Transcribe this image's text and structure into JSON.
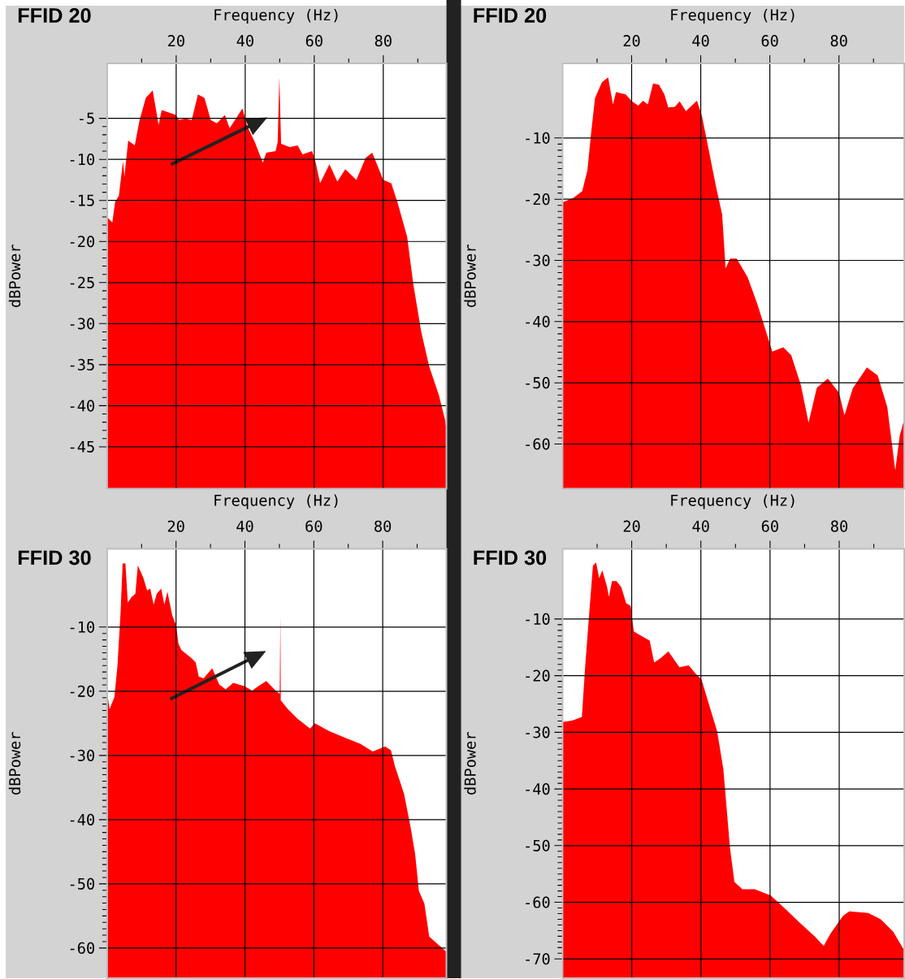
{
  "chart_data": [
    {
      "type": "area",
      "title": "FFID 20",
      "xlabel": "Frequency (Hz)",
      "ylabel": "dBPower",
      "color": "#ff0000",
      "grid": true,
      "xlim": [
        0,
        98.3
      ],
      "ylim": [
        -50.1,
        1.7
      ],
      "xticks": [
        {
          "value": 10,
          "label": null
        },
        20,
        {
          "value": 30,
          "label": null
        },
        40,
        {
          "value": 50,
          "label": null
        },
        60,
        {
          "value": 70,
          "label": null
        },
        80,
        {
          "value": 90,
          "label": null
        }
      ],
      "yticks": [
        -45,
        -40,
        -35,
        -30,
        -25,
        -20,
        -15,
        -10,
        -5
      ],
      "x": [
        0,
        0.2,
        1.5,
        2.3,
        3.4,
        4.6,
        5.0,
        6.1,
        8.0,
        9.4,
        11.2,
        13.2,
        14.9,
        15.8,
        18.6,
        19.9,
        20.8,
        22.7,
        24.5,
        26.3,
        28.2,
        30.0,
        31.8,
        34.1,
        35.5,
        39.2,
        40.6,
        42.8,
        45.1,
        46.1,
        48.8,
        49.4,
        49.9,
        50.4,
        52.9,
        55.2,
        56.6,
        59.4,
        60.3,
        61.7,
        64.4,
        66.7,
        69.0,
        72.2,
        74.9,
        76.8,
        80.0,
        82.3,
        84.1,
        86.9,
        88.7,
        91.0,
        93.3,
        96.1,
        97.9,
        98.3
      ],
      "values": [
        -15.2,
        -17.1,
        -17.7,
        -15.2,
        -14.4,
        -10.2,
        -12.1,
        -7.7,
        -8.3,
        -5.2,
        -2.5,
        -1.6,
        -5.8,
        -4.0,
        -4.4,
        -4.6,
        -5.2,
        -5.0,
        -5.2,
        -2.1,
        -2.5,
        -5.2,
        -5.6,
        -4.6,
        -6.2,
        -3.8,
        -6.0,
        -7.9,
        -10.4,
        -9.2,
        -9.0,
        -7.9,
        0.0,
        -8.1,
        -8.5,
        -8.3,
        -9.4,
        -9.0,
        -10.2,
        -12.9,
        -10.6,
        -12.7,
        -11.2,
        -12.5,
        -9.8,
        -9.2,
        -12.5,
        -12.9,
        -15.2,
        -19.4,
        -25.2,
        -31.0,
        -35.2,
        -38.7,
        -41.7,
        -42.9
      ]
    },
    {
      "type": "area",
      "title": "FFID 20",
      "xlabel": "Frequency (Hz)",
      "ylabel": "dBPower",
      "color": "#ff0000",
      "grid": true,
      "xlim": [
        0,
        98.9
      ],
      "ylim": [
        -67.3,
        2.2
      ],
      "xticks": [
        {
          "value": 10,
          "label": null
        },
        20,
        {
          "value": 30,
          "label": null
        },
        40,
        {
          "value": 50,
          "label": null
        },
        60,
        {
          "value": 70,
          "label": null
        },
        80,
        {
          "value": 90,
          "label": null
        }
      ],
      "yticks": [
        -60,
        -50,
        -40,
        -30,
        -20,
        -10
      ],
      "x": [
        0,
        3.1,
        5.7,
        7.2,
        8.2,
        9.4,
        11.4,
        13.2,
        14.6,
        15.5,
        18.3,
        20.1,
        21.9,
        23.3,
        24.7,
        26.2,
        27.9,
        29.5,
        30.6,
        32.5,
        33.9,
        35.7,
        38.9,
        40.3,
        41.7,
        44.4,
        46.2,
        47.2,
        48.5,
        50.4,
        53.6,
        56.3,
        58.9,
        60.7,
        63.9,
        66.2,
        69.0,
        71.2,
        73.6,
        76.8,
        80.0,
        81.6,
        84.0,
        88.1,
        91.2,
        94.0,
        96.3,
        97.6,
        98.9
      ],
      "values": [
        -20.5,
        -19.8,
        -18.7,
        -15.3,
        -9.6,
        -3.5,
        -0.9,
        -0.1,
        -4.5,
        -2.5,
        -2.9,
        -4.0,
        -4.7,
        -3.9,
        -4.5,
        -1.1,
        -1.3,
        -2.9,
        -5.0,
        -4.9,
        -4.0,
        -5.6,
        -3.9,
        -6.3,
        -10.2,
        -17.9,
        -22.5,
        -31.3,
        -29.7,
        -29.7,
        -32.8,
        -37.0,
        -41.6,
        -44.9,
        -44.2,
        -45.5,
        -50.4,
        -56.5,
        -50.8,
        -49.3,
        -51.6,
        -55.3,
        -50.9,
        -47.5,
        -48.8,
        -54.0,
        -64.3,
        -58.6,
        -56.0
      ]
    },
    {
      "type": "area",
      "title": "FFID 30",
      "xlabel": "Frequency (Hz)",
      "ylabel": "dBPower",
      "color": "#ff0000",
      "grid": true,
      "xlim": [
        0,
        98.5
      ],
      "ylim": [
        -64.7,
        2.2
      ],
      "xticks": [
        {
          "value": 10,
          "label": null
        },
        20,
        {
          "value": 30,
          "label": null
        },
        40,
        {
          "value": 50,
          "label": null
        },
        60,
        {
          "value": 70,
          "label": null
        },
        80,
        {
          "value": 90,
          "label": null
        }
      ],
      "yticks": [
        -60,
        -50,
        -40,
        -30,
        -20,
        -10
      ],
      "x": [
        0,
        0.7,
        2.1,
        3.0,
        3.9,
        4.5,
        5.3,
        6.0,
        7.1,
        8.2,
        8.9,
        10.5,
        11.6,
        12.5,
        13.5,
        14.4,
        15.7,
        16.6,
        17.5,
        18.9,
        20.0,
        20.7,
        21.6,
        24.4,
        25.7,
        26.6,
        28.0,
        30.5,
        32.5,
        34.4,
        36.6,
        39.8,
        42.1,
        43.9,
        46.2,
        48.9,
        50.1,
        50.3,
        50.4,
        52.5,
        55.3,
        58.9,
        60.3,
        64.4,
        68.9,
        73.5,
        77.1,
        80.7,
        82.4,
        83.5,
        86.2,
        88.0,
        89.4,
        90.5,
        92.1,
        93.5,
        96.0,
        98.5
      ],
      "values": [
        -20.1,
        -22.8,
        -20.9,
        -16.0,
        -7.7,
        -0.1,
        -0.1,
        -6.2,
        -5.3,
        -4.8,
        -0.4,
        -2.3,
        -4.3,
        -4.0,
        -6.5,
        -4.8,
        -4.0,
        -6.5,
        -4.5,
        -8.2,
        -9.7,
        -12.6,
        -13.6,
        -14.8,
        -15.5,
        -17.7,
        -18.0,
        -16.4,
        -18.9,
        -19.7,
        -18.7,
        -19.2,
        -19.9,
        -19.2,
        -18.4,
        -19.9,
        -20.4,
        -8.2,
        -21.4,
        -22.8,
        -24.3,
        -25.8,
        -25.0,
        -26.2,
        -27.2,
        -28.2,
        -29.4,
        -28.6,
        -29.2,
        -31.6,
        -36.0,
        -40.9,
        -45.3,
        -51.1,
        -53.1,
        -58.2,
        -59.4,
        -60.6
      ]
    },
    {
      "type": "area",
      "title": "FFID 30",
      "xlabel": "Frequency (Hz)",
      "ylabel": "dBPower",
      "color": "#ff0000",
      "grid": true,
      "xlim": [
        0,
        98.8
      ],
      "ylim": [
        -73.4,
        2.4
      ],
      "xticks": [
        {
          "value": 10,
          "label": null
        },
        20,
        {
          "value": 30,
          "label": null
        },
        40,
        {
          "value": 50,
          "label": null
        },
        60,
        {
          "value": 70,
          "label": null
        },
        80,
        {
          "value": 90,
          "label": null
        }
      ],
      "yticks": [
        -70,
        -60,
        -50,
        -40,
        -30,
        -20,
        -10
      ],
      "x": [
        0,
        2.9,
        5.6,
        6.5,
        7.6,
        8.8,
        9.7,
        10.6,
        11.5,
        12.9,
        13.4,
        14.3,
        15.6,
        17.0,
        18.4,
        19.7,
        20.6,
        22.0,
        25.2,
        26.5,
        28.4,
        30.6,
        33.8,
        36.5,
        38.4,
        40.2,
        42.5,
        44.7,
        46.5,
        48.4,
        49.7,
        52.0,
        55.6,
        60.2,
        63.8,
        68.4,
        72.9,
        75.5,
        77.5,
        81.1,
        82.9,
        88.4,
        92.0,
        95.6,
        98.8
      ],
      "values": [
        -28.2,
        -27.9,
        -27.3,
        -18.8,
        -9.9,
        -0.6,
        0.0,
        -2.8,
        -1.4,
        -4.4,
        -6.1,
        -3.3,
        -3.3,
        -4.4,
        -7.2,
        -7.7,
        -12.2,
        -12.7,
        -13.8,
        -17.7,
        -16.9,
        -15.7,
        -18.5,
        -18.2,
        -19.6,
        -20.7,
        -25.4,
        -29.8,
        -36.5,
        -50.3,
        -56.4,
        -57.7,
        -57.7,
        -58.8,
        -60.8,
        -63.5,
        -66.0,
        -67.7,
        -65.5,
        -62.4,
        -61.6,
        -61.9,
        -63.0,
        -65.2,
        -68.5
      ]
    }
  ]
}
